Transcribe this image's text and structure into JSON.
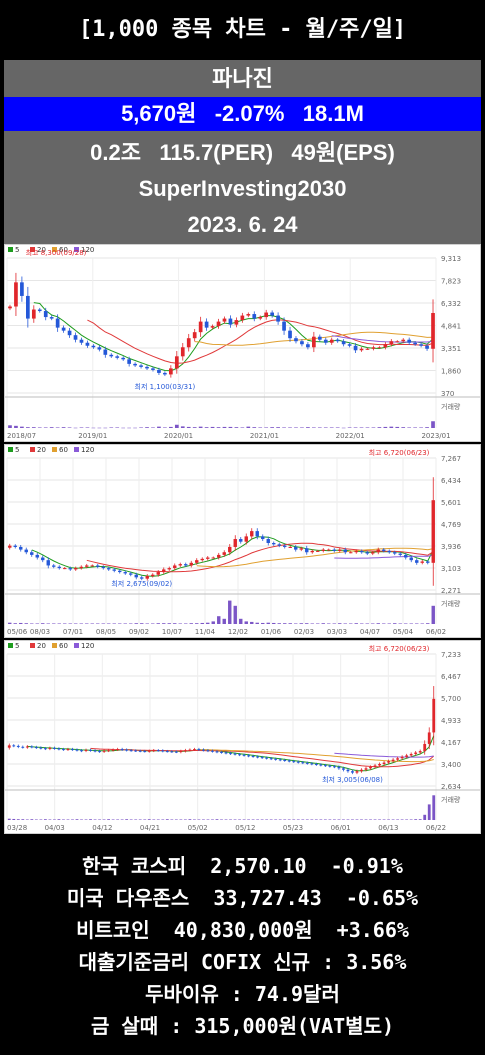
{
  "header": {
    "title": "[1,000 종목 차트 - 월/주/일]"
  },
  "stock": {
    "name": "파나진",
    "price": "5,670원",
    "change": "-2.07%",
    "volume": "18.1M",
    "market_cap": "0.2조",
    "per": "115.7(PER)",
    "eps": "49원(EPS)",
    "source": "SuperInvesting2030",
    "date": "2023. 6. 24"
  },
  "legend": {
    "ma": [
      "5",
      "20",
      "60",
      "120"
    ],
    "colors": [
      "#1e9c1e",
      "#e0393a",
      "#e0a030",
      "#8a5ad8"
    ]
  },
  "volume_label": "거래량",
  "colors": {
    "up": "#e0262b",
    "down": "#2458d8",
    "blue_bar": "#0000ff",
    "info_bg": "#666666"
  },
  "chart_data": [
    {
      "type": "candlestick",
      "period": "monthly",
      "y_ticks": [
        "9,313",
        "7,823",
        "6,332",
        "4,841",
        "3,351",
        "1,860",
        "370"
      ],
      "ylim": [
        370,
        9313
      ],
      "x_ticks": [
        "2018/07",
        "2019/01",
        "2020/01",
        "2021/01",
        "2022/01",
        "2023/01"
      ],
      "high_label": "최고 8,300(09/28)",
      "low_label": "최저 1,100(03/31)",
      "close": [
        6100,
        7700,
        6800,
        5300,
        5900,
        5800,
        5400,
        5300,
        4700,
        4500,
        4200,
        3900,
        3700,
        3500,
        3400,
        3250,
        2900,
        2800,
        2700,
        2600,
        2300,
        2200,
        2100,
        2000,
        1900,
        1700,
        1600,
        2000,
        2800,
        3400,
        4000,
        4400,
        5100,
        4700,
        4800,
        5100,
        5300,
        4900,
        5200,
        5500,
        5600,
        5300,
        5400,
        5700,
        5500,
        5100,
        4500,
        4000,
        3800,
        3600,
        3400,
        4100,
        3900,
        3700,
        3900,
        3800,
        3600,
        3500,
        3200,
        3300,
        3300,
        3400,
        3400,
        3600,
        3800,
        3800,
        3900,
        3700,
        3600,
        3500,
        3300,
        5670
      ],
      "volume": [
        0.1,
        0.08,
        0.05,
        0.03,
        0.03,
        0.02,
        0.02,
        0.03,
        0.02,
        0.03,
        0.02,
        0.01,
        0.02,
        0.02,
        0.01,
        0.01,
        0.01,
        0.02,
        0.02,
        0.01,
        0.01,
        0.01,
        0.02,
        0.03,
        0.02,
        0.05,
        0.02,
        0.04,
        0.12,
        0.06,
        0.04,
        0.03,
        0.05,
        0.03,
        0.04,
        0.03,
        0.04,
        0.04,
        0.03,
        0.02,
        0.05,
        0.03,
        0.02,
        0.02,
        0.03,
        0.03,
        0.02,
        0.02,
        0.02,
        0.02,
        0.03,
        0.02,
        0.02,
        0.02,
        0.02,
        0.02,
        0.01,
        0.02,
        0.02,
        0.02,
        0.02,
        0.02,
        0.03,
        0.04,
        0.05,
        0.04,
        0.03,
        0.02,
        0.02,
        0.02,
        0.03,
        0.25
      ]
    },
    {
      "type": "candlestick",
      "period": "weekly",
      "y_ticks": [
        "7,267",
        "6,434",
        "5,601",
        "4,769",
        "3,936",
        "3,103",
        "2,271"
      ],
      "ylim": [
        2271,
        7267
      ],
      "x_ticks": [
        "05/06",
        "08/03",
        "07/01",
        "08/05",
        "09/02",
        "10/07",
        "11/04",
        "12/02",
        "01/06",
        "02/03",
        "03/03",
        "04/07",
        "05/04",
        "06/02"
      ],
      "high_label": "최고 6,720(06/23)",
      "low_label": "최저 2,675(09/02)",
      "close": [
        3950,
        3900,
        3800,
        3700,
        3600,
        3500,
        3400,
        3200,
        3150,
        3100,
        3100,
        3050,
        3100,
        3150,
        3200,
        3200,
        3150,
        3100,
        3050,
        3000,
        2950,
        2900,
        2850,
        2750,
        2700,
        2800,
        2850,
        2950,
        3050,
        3100,
        3200,
        3250,
        3200,
        3300,
        3400,
        3450,
        3500,
        3500,
        3600,
        3700,
        3900,
        4200,
        4100,
        4300,
        4500,
        4300,
        4200,
        4050,
        4000,
        3950,
        3900,
        3900,
        3800,
        3850,
        3700,
        3750,
        3750,
        3800,
        3800,
        3750,
        3800,
        3700,
        3700,
        3750,
        3700,
        3650,
        3700,
        3800,
        3750,
        3700,
        3650,
        3600,
        3500,
        3400,
        3300,
        3350,
        3300,
        5670
      ],
      "volume": [
        0.05,
        0.03,
        0.04,
        0.03,
        0.02,
        0.02,
        0.03,
        0.02,
        0.02,
        0.02,
        0.02,
        0.02,
        0.02,
        0.02,
        0.02,
        0.02,
        0.02,
        0.02,
        0.02,
        0.02,
        0.02,
        0.02,
        0.02,
        0.03,
        0.03,
        0.02,
        0.02,
        0.03,
        0.03,
        0.03,
        0.03,
        0.02,
        0.02,
        0.03,
        0.03,
        0.04,
        0.05,
        0.1,
        0.3,
        0.2,
        0.9,
        0.7,
        0.2,
        0.1,
        0.08,
        0.05,
        0.04,
        0.05,
        0.04,
        0.03,
        0.03,
        0.03,
        0.02,
        0.03,
        0.03,
        0.02,
        0.02,
        0.03,
        0.02,
        0.02,
        0.03,
        0.02,
        0.02,
        0.03,
        0.02,
        0.02,
        0.02,
        0.03,
        0.02,
        0.02,
        0.03,
        0.02,
        0.02,
        0.02,
        0.02,
        0.02,
        0.03,
        0.7
      ]
    },
    {
      "type": "candlestick",
      "period": "daily",
      "y_ticks": [
        "7,233",
        "6,467",
        "5,700",
        "4,933",
        "4,167",
        "3,400",
        "2,634"
      ],
      "ylim": [
        2634,
        7233
      ],
      "x_ticks": [
        "03/28",
        "04/03",
        "04/12",
        "04/21",
        "05/02",
        "05/12",
        "05/23",
        "06/01",
        "06/13",
        "06/22"
      ],
      "high_label": "최고 6,720(06/23)",
      "low_label": "최저 3,005(06/08)",
      "close": [
        4050,
        4030,
        4000,
        3980,
        4010,
        3990,
        3970,
        3950,
        3930,
        3960,
        3940,
        3920,
        3900,
        3920,
        3900,
        3880,
        3860,
        3890,
        3870,
        3850,
        3830,
        3860,
        3880,
        3900,
        3920,
        3900,
        3880,
        3870,
        3860,
        3850,
        3840,
        3860,
        3880,
        3870,
        3850,
        3840,
        3830,
        3820,
        3850,
        3880,
        3900,
        3920,
        3900,
        3880,
        3860,
        3840,
        3820,
        3800,
        3780,
        3760,
        3740,
        3720,
        3700,
        3680,
        3660,
        3640,
        3620,
        3600,
        3580,
        3560,
        3540,
        3520,
        3500,
        3480,
        3460,
        3440,
        3420,
        3400,
        3380,
        3360,
        3340,
        3320,
        3300,
        3250,
        3200,
        3150,
        3100,
        3150,
        3200,
        3250,
        3300,
        3350,
        3400,
        3450,
        3500,
        3550,
        3600,
        3650,
        3700,
        3750,
        3800,
        3850,
        4100,
        4500,
        5670
      ],
      "volume": [
        0.05,
        0.04,
        0.03,
        0.03,
        0.02,
        0.03,
        0.02,
        0.02,
        0.03,
        0.02,
        0.02,
        0.03,
        0.02,
        0.02,
        0.02,
        0.03,
        0.02,
        0.02,
        0.03,
        0.02,
        0.02,
        0.02,
        0.03,
        0.02,
        0.02,
        0.02,
        0.03,
        0.02,
        0.02,
        0.02,
        0.02,
        0.03,
        0.02,
        0.02,
        0.02,
        0.03,
        0.02,
        0.02,
        0.02,
        0.02,
        0.03,
        0.02,
        0.02,
        0.02,
        0.02,
        0.02,
        0.03,
        0.02,
        0.02,
        0.02,
        0.02,
        0.02,
        0.02,
        0.02,
        0.02,
        0.02,
        0.02,
        0.02,
        0.02,
        0.02,
        0.02,
        0.02,
        0.02,
        0.02,
        0.02,
        0.02,
        0.02,
        0.02,
        0.02,
        0.02,
        0.02,
        0.02,
        0.02,
        0.02,
        0.02,
        0.02,
        0.02,
        0.02,
        0.02,
        0.02,
        0.02,
        0.02,
        0.02,
        0.02,
        0.02,
        0.02,
        0.02,
        0.02,
        0.02,
        0.02,
        0.03,
        0.03,
        0.2,
        0.6,
        0.95
      ]
    }
  ],
  "market": {
    "lines": [
      "한국 코스피  2,570.10  -0.91%",
      "미국 다우존스  33,727.43  -0.65%",
      "비트코인  40,830,000원  +3.66%",
      "대출기준금리 COFIX 신규 : 3.56%",
      "두바이유 : 74.9달러",
      "금 살때 : 315,000원(VAT별도)"
    ]
  }
}
